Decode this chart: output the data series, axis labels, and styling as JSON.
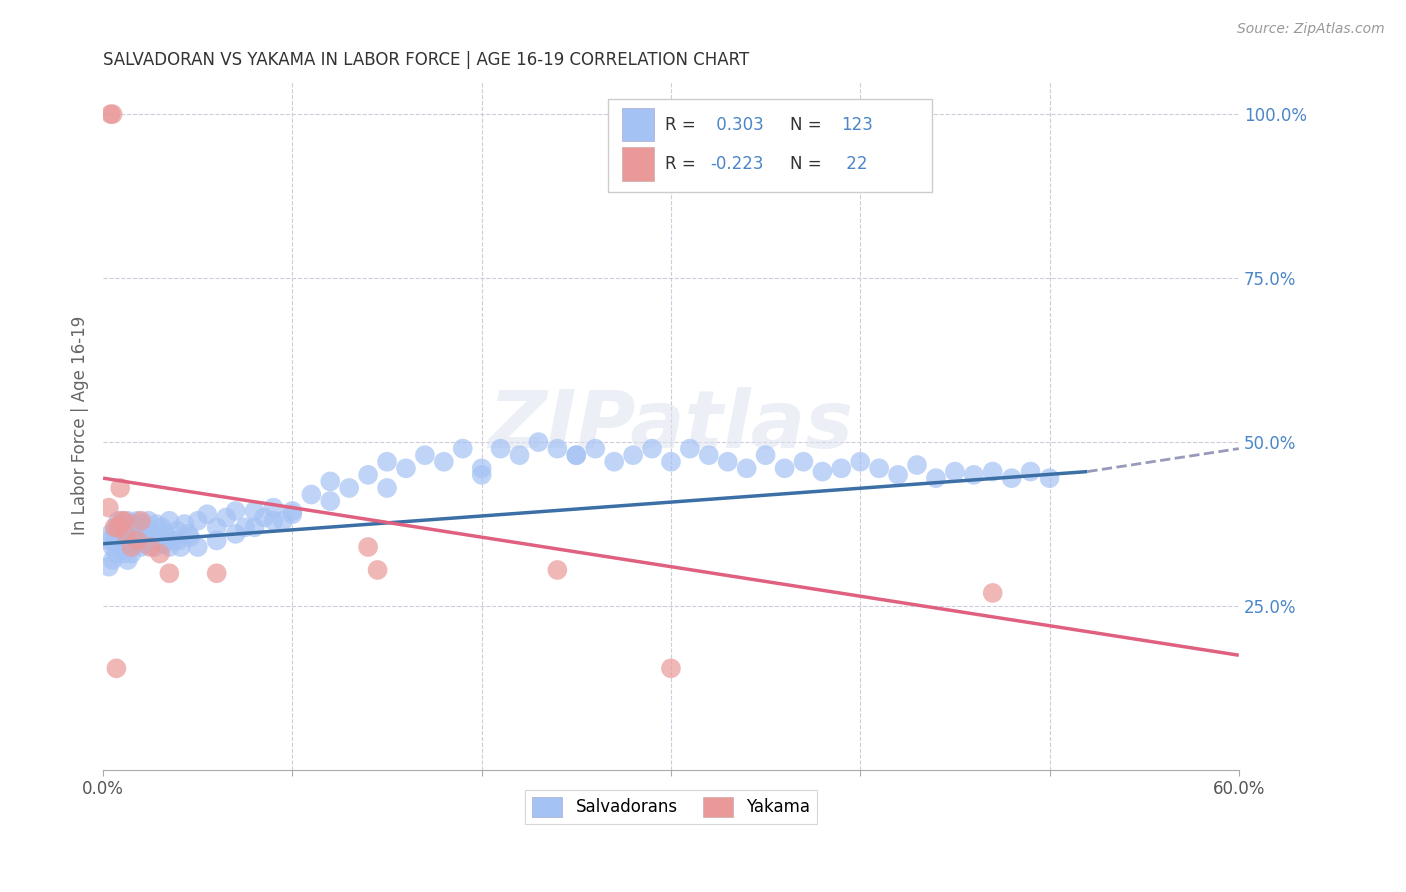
{
  "title": "SALVADORAN VS YAKAMA IN LABOR FORCE | AGE 16-19 CORRELATION CHART",
  "source": "Source: ZipAtlas.com",
  "ylabel": "In Labor Force | Age 16-19",
  "xlim": [
    0.0,
    0.6
  ],
  "ylim": [
    0.0,
    1.05
  ],
  "x_tick_positions": [
    0.0,
    0.1,
    0.2,
    0.3,
    0.4,
    0.5,
    0.6
  ],
  "x_tick_labels": [
    "0.0%",
    "",
    "",
    "",
    "",
    "",
    "60.0%"
  ],
  "y_ticks_right": [
    0.25,
    0.5,
    0.75,
    1.0
  ],
  "y_tick_labels_right": [
    "25.0%",
    "50.0%",
    "75.0%",
    "100.0%"
  ],
  "blue_color": "#a4c2f4",
  "pink_color": "#ea9999",
  "blue_line_color": "#3c6fa5",
  "pink_line_color": "#e06080",
  "dashed_line_color": "#9999bb",
  "watermark": "ZIPatlas",
  "blue_scatter_x": [
    0.003,
    0.004,
    0.005,
    0.006,
    0.007,
    0.007,
    0.008,
    0.008,
    0.009,
    0.009,
    0.01,
    0.01,
    0.011,
    0.011,
    0.012,
    0.012,
    0.013,
    0.013,
    0.014,
    0.015,
    0.015,
    0.016,
    0.016,
    0.017,
    0.017,
    0.018,
    0.018,
    0.019,
    0.02,
    0.02,
    0.021,
    0.022,
    0.022,
    0.023,
    0.024,
    0.025,
    0.026,
    0.027,
    0.028,
    0.03,
    0.031,
    0.032,
    0.033,
    0.035,
    0.037,
    0.039,
    0.041,
    0.043,
    0.046,
    0.05,
    0.055,
    0.06,
    0.065,
    0.07,
    0.075,
    0.08,
    0.085,
    0.09,
    0.095,
    0.1,
    0.11,
    0.12,
    0.13,
    0.14,
    0.15,
    0.16,
    0.17,
    0.18,
    0.19,
    0.2,
    0.21,
    0.22,
    0.23,
    0.24,
    0.25,
    0.26,
    0.27,
    0.28,
    0.29,
    0.3,
    0.31,
    0.32,
    0.33,
    0.34,
    0.35,
    0.36,
    0.37,
    0.38,
    0.39,
    0.4,
    0.41,
    0.42,
    0.43,
    0.44,
    0.45,
    0.46,
    0.47,
    0.48,
    0.49,
    0.5,
    0.003,
    0.005,
    0.007,
    0.009,
    0.011,
    0.013,
    0.015,
    0.02,
    0.025,
    0.03,
    0.035,
    0.04,
    0.045,
    0.05,
    0.06,
    0.07,
    0.08,
    0.09,
    0.1,
    0.12,
    0.15,
    0.2,
    0.25
  ],
  "blue_scatter_y": [
    0.35,
    0.36,
    0.34,
    0.355,
    0.37,
    0.345,
    0.36,
    0.38,
    0.35,
    0.365,
    0.375,
    0.34,
    0.355,
    0.37,
    0.345,
    0.36,
    0.38,
    0.35,
    0.365,
    0.34,
    0.375,
    0.355,
    0.37,
    0.345,
    0.36,
    0.38,
    0.35,
    0.365,
    0.34,
    0.375,
    0.355,
    0.37,
    0.345,
    0.36,
    0.38,
    0.35,
    0.365,
    0.34,
    0.375,
    0.355,
    0.37,
    0.345,
    0.36,
    0.38,
    0.35,
    0.365,
    0.34,
    0.375,
    0.355,
    0.38,
    0.39,
    0.37,
    0.385,
    0.395,
    0.37,
    0.395,
    0.385,
    0.4,
    0.38,
    0.395,
    0.42,
    0.44,
    0.43,
    0.45,
    0.47,
    0.46,
    0.48,
    0.47,
    0.49,
    0.46,
    0.49,
    0.48,
    0.5,
    0.49,
    0.48,
    0.49,
    0.47,
    0.48,
    0.49,
    0.47,
    0.49,
    0.48,
    0.47,
    0.46,
    0.48,
    0.46,
    0.47,
    0.455,
    0.46,
    0.47,
    0.46,
    0.45,
    0.465,
    0.445,
    0.455,
    0.45,
    0.455,
    0.445,
    0.455,
    0.445,
    0.31,
    0.32,
    0.33,
    0.34,
    0.33,
    0.32,
    0.33,
    0.35,
    0.36,
    0.35,
    0.34,
    0.35,
    0.36,
    0.34,
    0.35,
    0.36,
    0.37,
    0.38,
    0.39,
    0.41,
    0.43,
    0.45,
    0.48
  ],
  "pink_scatter_x": [
    0.003,
    0.004,
    0.005,
    0.006,
    0.007,
    0.008,
    0.009,
    0.01,
    0.011,
    0.012,
    0.015,
    0.018,
    0.02,
    0.025,
    0.03,
    0.035,
    0.06,
    0.14,
    0.145,
    0.24,
    0.3,
    0.47
  ],
  "pink_scatter_y": [
    0.4,
    1.0,
    1.0,
    0.37,
    0.155,
    0.37,
    0.43,
    0.38,
    0.38,
    0.36,
    0.34,
    0.35,
    0.38,
    0.34,
    0.33,
    0.3,
    0.3,
    0.34,
    0.305,
    0.305,
    0.155,
    0.27
  ],
  "blue_line_x": [
    0.0,
    0.52
  ],
  "blue_line_y": [
    0.345,
    0.455
  ],
  "dashed_line_x": [
    0.52,
    0.6
  ],
  "dashed_line_y": [
    0.455,
    0.49
  ],
  "pink_line_x": [
    0.0,
    0.6
  ],
  "pink_line_y": [
    0.445,
    0.175
  ]
}
